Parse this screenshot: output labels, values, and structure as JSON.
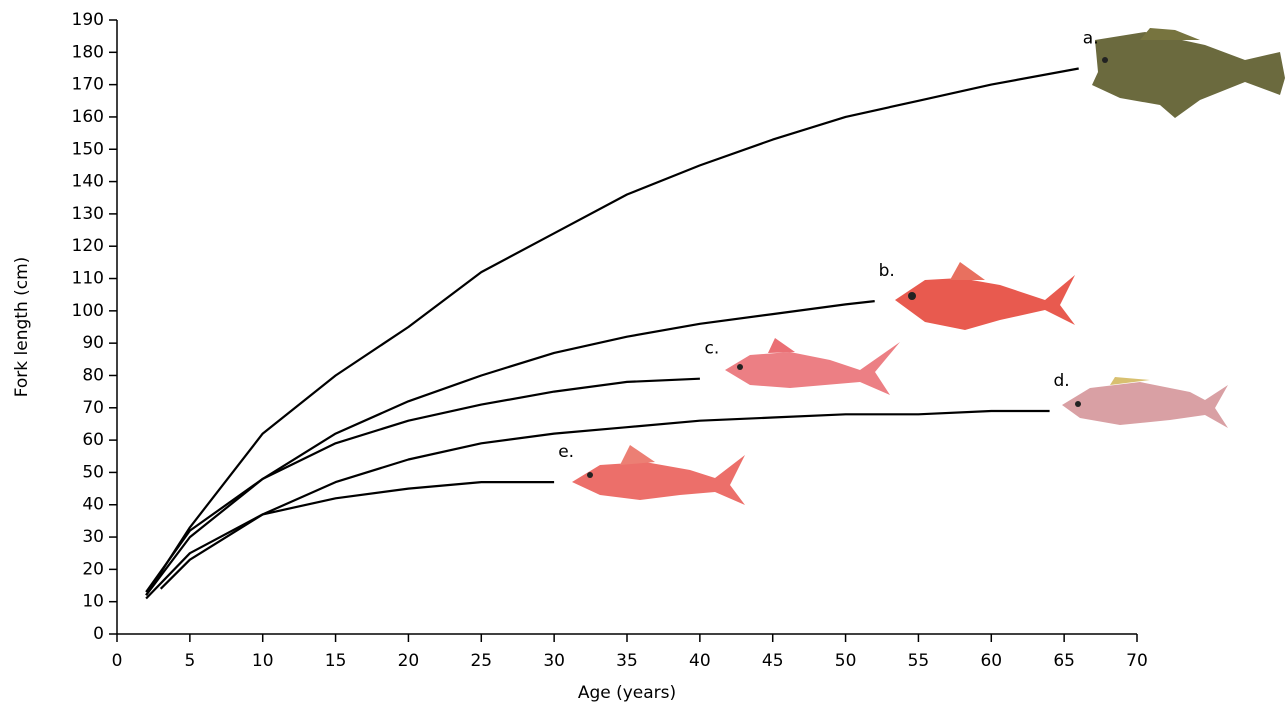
{
  "chart_data": {
    "type": "line",
    "x_label": "Age (years)",
    "y_label": "Fork length (cm)",
    "xlim": [
      0,
      70
    ],
    "ylim": [
      0,
      190
    ],
    "xticks": [
      0,
      5,
      10,
      15,
      20,
      25,
      30,
      35,
      40,
      45,
      50,
      55,
      60,
      65,
      70
    ],
    "yticks": [
      0,
      10,
      20,
      30,
      40,
      50,
      60,
      70,
      80,
      90,
      100,
      110,
      120,
      130,
      140,
      150,
      160,
      170,
      180,
      190
    ],
    "color": "#000000",
    "series": [
      {
        "name": "a.",
        "x": [
          2,
          5,
          10,
          15,
          20,
          25,
          30,
          35,
          40,
          45,
          50,
          55,
          60,
          66
        ],
        "values": [
          12,
          33,
          62,
          80,
          95,
          112,
          124,
          136,
          145,
          153,
          160,
          165,
          170,
          175
        ]
      },
      {
        "name": "b.",
        "x": [
          2,
          5,
          10,
          15,
          20,
          25,
          30,
          35,
          40,
          45,
          50,
          52
        ],
        "values": [
          12,
          30,
          48,
          62,
          72,
          80,
          87,
          92,
          96,
          99,
          102,
          103
        ]
      },
      {
        "name": "c.",
        "x": [
          2,
          5,
          10,
          15,
          20,
          25,
          30,
          35,
          40
        ],
        "values": [
          13,
          32,
          48,
          59,
          66,
          71,
          75,
          78,
          79
        ]
      },
      {
        "name": "d.",
        "x": [
          3,
          5,
          10,
          15,
          20,
          25,
          30,
          35,
          40,
          45,
          50,
          55,
          60,
          64
        ],
        "values": [
          14,
          23,
          37,
          47,
          54,
          59,
          62,
          64,
          66,
          67,
          68,
          68,
          69,
          69
        ]
      },
      {
        "name": "e.",
        "x": [
          2,
          5,
          10,
          15,
          20,
          25,
          30
        ],
        "values": [
          11,
          25,
          37,
          42,
          45,
          47,
          47
        ]
      }
    ]
  }
}
